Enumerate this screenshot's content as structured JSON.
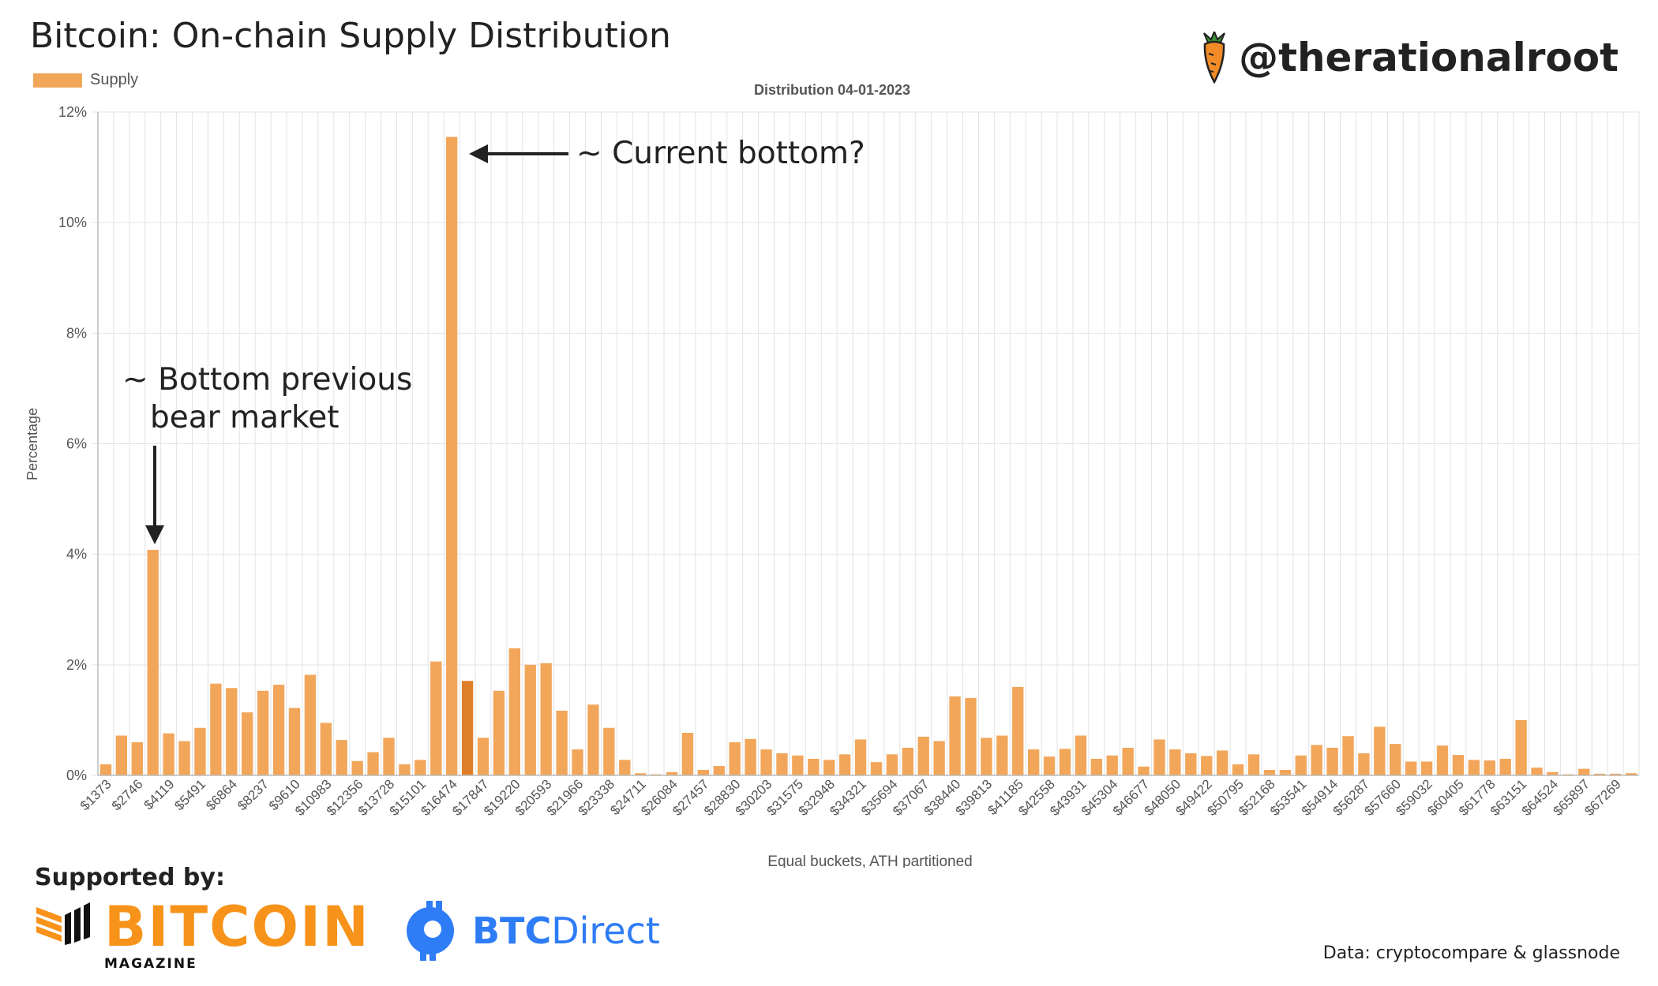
{
  "header": {
    "title": "Bitcoin: On-chain Supply Distribution",
    "handle": "@therationalroot"
  },
  "footer": {
    "supported_by": "Supported by:",
    "sponsor1_word": "BITCOIN",
    "sponsor1_sub": "MAGAZINE",
    "sponsor2_bold": "BTC",
    "sponsor2_rest": "Direct",
    "source": "Data: cryptocompare & glassnode"
  },
  "colors": {
    "bar": "#f2a65a",
    "bar_highlight": "#e07f2a",
    "grid": "#e3e3e3",
    "brand_orange": "#f7931a",
    "brand_blue": "#2e7cf6"
  },
  "chart_data": {
    "type": "bar",
    "title": "Distribution 04-01-2023",
    "legend": [
      "Supply"
    ],
    "legend_position": "top-left",
    "xlabel": "Equal buckets, ATH partitioned",
    "ylabel": "Percentage",
    "ylim": [
      0,
      12
    ],
    "yticks": [
      "0%",
      "2%",
      "4%",
      "6%",
      "8%",
      "10%",
      "12%"
    ],
    "grid": true,
    "xtick_labels": [
      "$1373",
      "$2746",
      "$4119",
      "$5491",
      "$6864",
      "$8237",
      "$9610",
      "$10983",
      "$12356",
      "$13728",
      "$15101",
      "$16474",
      "$17847",
      "$19220",
      "$20593",
      "$21966",
      "$23338",
      "$24711",
      "$26084",
      "$27457",
      "$28830",
      "$30203",
      "$31575",
      "$32948",
      "$34321",
      "$35694",
      "$37067",
      "$38440",
      "$39813",
      "$41185",
      "$42558",
      "$43931",
      "$45304",
      "$46677",
      "$48050",
      "$49422",
      "$50795",
      "$52168",
      "$53541",
      "$54914",
      "$56287",
      "$57660",
      "$59032",
      "$60405",
      "$61778",
      "$63151",
      "$64524",
      "$65897",
      "$67269"
    ],
    "highlight_index": 23,
    "values": [
      0.2,
      0.72,
      0.6,
      4.08,
      0.76,
      0.62,
      0.86,
      1.66,
      1.58,
      1.14,
      1.53,
      1.64,
      1.22,
      1.82,
      0.95,
      0.64,
      0.26,
      0.42,
      0.68,
      0.2,
      0.28,
      2.06,
      11.55,
      1.71,
      0.68,
      1.53,
      2.3,
      2.0,
      2.03,
      1.17,
      0.47,
      1.28,
      0.86,
      0.28,
      0.04,
      0.02,
      0.06,
      0.77,
      0.1,
      0.17,
      0.6,
      0.66,
      0.47,
      0.4,
      0.36,
      0.3,
      0.28,
      0.38,
      0.65,
      0.24,
      0.38,
      0.5,
      0.7,
      0.62,
      1.43,
      1.4,
      0.68,
      0.72,
      1.6,
      0.47,
      0.34,
      0.48,
      0.72,
      0.3,
      0.36,
      0.5,
      0.16,
      0.65,
      0.47,
      0.4,
      0.35,
      0.45,
      0.2,
      0.38,
      0.1,
      0.1,
      0.36,
      0.55,
      0.5,
      0.71,
      0.4,
      0.88,
      0.57,
      0.25,
      0.25,
      0.54,
      0.37,
      0.28,
      0.27,
      0.3,
      1.0,
      0.14,
      0.06,
      0.02,
      0.12,
      0.03,
      0.03,
      0.04
    ],
    "annotations": [
      {
        "text_line1": "~ Bottom previous",
        "text_line2": "bear market",
        "bar_index": 3
      },
      {
        "text_line1": "~ Current bottom?",
        "bar_index": 22
      }
    ]
  }
}
